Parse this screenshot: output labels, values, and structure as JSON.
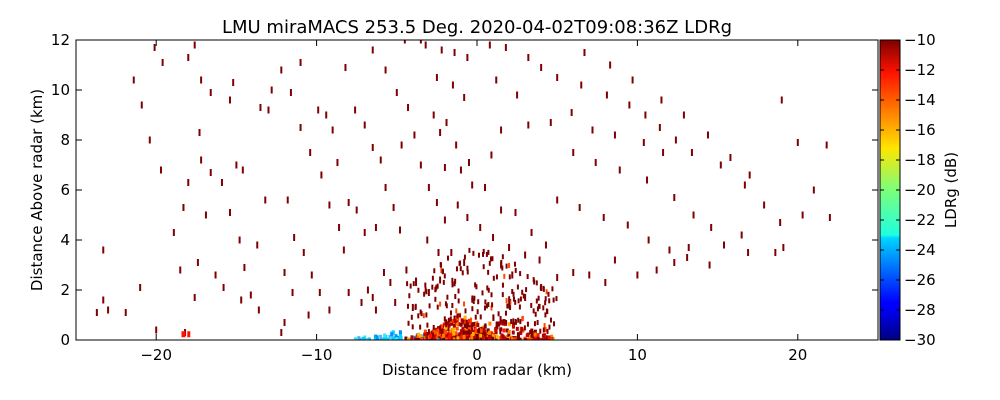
{
  "chart_data": {
    "type": "scatter",
    "title": "LMU miraMACS 253.5 Deg. 2020-04-02T09:08:36Z  LDRg",
    "xlabel": "Distance from radar (km)",
    "ylabel": "Distance Above radar  (km)",
    "xlim": [
      -25,
      25
    ],
    "ylim": [
      0,
      12
    ],
    "xticks": [
      -20,
      -10,
      0,
      10,
      20
    ],
    "yticks": [
      0,
      2,
      4,
      6,
      8,
      10,
      12
    ],
    "colorbar": {
      "label": "LDRg (dB)",
      "range": [
        -30,
        -10
      ],
      "ticks": [
        -10,
        -12,
        -14,
        -16,
        -18,
        -20,
        -22,
        -24,
        -26,
        -28,
        -30
      ],
      "colormap": "jet"
    },
    "grid": false,
    "sparse_points": [
      [
        -23.3,
        3.6
      ],
      [
        -23.3,
        1.6
      ],
      [
        -23.7,
        1.1
      ],
      [
        -21.9,
        1.1
      ],
      [
        -21.0,
        2.1
      ],
      [
        -21.4,
        10.4
      ],
      [
        -20.9,
        9.4
      ],
      [
        -20.4,
        8.0
      ],
      [
        -19.7,
        6.8
      ],
      [
        -20.1,
        11.7
      ],
      [
        -19.6,
        11.1
      ],
      [
        -18.9,
        4.3
      ],
      [
        -18.3,
        5.3
      ],
      [
        -18.0,
        11.3
      ],
      [
        -17.6,
        11.8
      ],
      [
        -17.2,
        10.4
      ],
      [
        -16.6,
        9.9
      ],
      [
        -17.3,
        8.3
      ],
      [
        -18.0,
        6.3
      ],
      [
        -17.2,
        7.2
      ],
      [
        -16.6,
        6.7
      ],
      [
        -16.9,
        5.0
      ],
      [
        -17.4,
        3.1
      ],
      [
        -18.5,
        2.8
      ],
      [
        -16.3,
        2.6
      ],
      [
        -15.9,
        6.3
      ],
      [
        -15.4,
        5.1
      ],
      [
        -15.4,
        9.6
      ],
      [
        -15.0,
        7.0
      ],
      [
        -14.6,
        6.8
      ],
      [
        -14.8,
        4.0
      ],
      [
        -14.5,
        2.9
      ],
      [
        -14.1,
        1.8
      ],
      [
        -13.7,
        3.8
      ],
      [
        -13.2,
        5.6
      ],
      [
        -13.0,
        9.2
      ],
      [
        -12.8,
        10.0
      ],
      [
        -12.2,
        10.8
      ],
      [
        -11.6,
        9.9
      ],
      [
        -11.0,
        8.5
      ],
      [
        -10.4,
        7.5
      ],
      [
        -9.7,
        6.6
      ],
      [
        -9.2,
        5.4
      ],
      [
        -8.6,
        4.5
      ],
      [
        -8.3,
        3.6
      ],
      [
        -11.8,
        5.6
      ],
      [
        -11.4,
        4.1
      ],
      [
        -10.8,
        3.5
      ],
      [
        -10.3,
        2.6
      ],
      [
        -9.8,
        1.9
      ],
      [
        -12.0,
        2.7
      ],
      [
        -11.5,
        1.9
      ],
      [
        -9.9,
        9.2
      ],
      [
        -9.0,
        8.4
      ],
      [
        -8.7,
        7.1
      ],
      [
        -8.0,
        5.5
      ],
      [
        -7.5,
        5.2
      ],
      [
        -7.0,
        4.3
      ],
      [
        -8.2,
        10.9
      ],
      [
        -7.6,
        9.2
      ],
      [
        -7.0,
        8.6
      ],
      [
        -6.5,
        7.7
      ],
      [
        -6.0,
        7.2
      ],
      [
        -5.7,
        6.1
      ],
      [
        -5.2,
        5.3
      ],
      [
        -4.8,
        4.4
      ],
      [
        -6.3,
        4.5
      ],
      [
        -5.8,
        2.7
      ],
      [
        -5.4,
        2.3
      ],
      [
        -4.4,
        2.8
      ],
      [
        -3.8,
        2.3
      ],
      [
        -6.5,
        11.6
      ],
      [
        -5.7,
        10.8
      ],
      [
        -5.0,
        9.9
      ],
      [
        -4.3,
        9.3
      ],
      [
        -3.9,
        8.2
      ],
      [
        -4.7,
        7.8
      ],
      [
        -3.5,
        7.0
      ],
      [
        -3.0,
        6.1
      ],
      [
        -2.5,
        5.5
      ],
      [
        -2.0,
        4.8
      ],
      [
        -6.8,
        2.0
      ],
      [
        -6.5,
        1.7
      ],
      [
        -4.5,
        12.0
      ],
      [
        -3.2,
        11.8
      ],
      [
        -2.2,
        11.6
      ],
      [
        -1.4,
        11.5
      ],
      [
        -0.6,
        11.3
      ],
      [
        -2.5,
        10.5
      ],
      [
        -1.5,
        10.2
      ],
      [
        -0.8,
        9.7
      ],
      [
        -2.3,
        8.3
      ],
      [
        -1.3,
        7.8
      ],
      [
        -0.5,
        7.1
      ],
      [
        -2.7,
        9.0
      ],
      [
        -1.9,
        8.7
      ],
      [
        -1.0,
        6.8
      ],
      [
        -0.3,
        6.2
      ],
      [
        0.5,
        6.1
      ],
      [
        1.5,
        5.2
      ],
      [
        2.4,
        5.1
      ],
      [
        3.4,
        4.3
      ],
      [
        4.3,
        3.8
      ],
      [
        -2.0,
        6.9
      ],
      [
        -1.2,
        5.4
      ],
      [
        -0.6,
        4.9
      ],
      [
        0.2,
        4.5
      ],
      [
        1.0,
        4.1
      ],
      [
        2.0,
        3.7
      ],
      [
        3.0,
        3.4
      ],
      [
        3.9,
        3.2
      ],
      [
        -3.1,
        4.0
      ],
      [
        -2.4,
        3.5
      ],
      [
        0.8,
        11.8
      ],
      [
        1.8,
        11.7
      ],
      [
        3.2,
        11.3
      ],
      [
        4.0,
        10.9
      ],
      [
        5.0,
        10.5
      ],
      [
        6.5,
        10.2
      ],
      [
        8.1,
        9.8
      ],
      [
        9.5,
        9.4
      ],
      [
        10.5,
        9.0
      ],
      [
        11.4,
        8.5
      ],
      [
        12.4,
        8.0
      ],
      [
        13.4,
        7.5
      ],
      [
        15.2,
        7.0
      ],
      [
        16.7,
        6.2
      ],
      [
        17.9,
        5.4
      ],
      [
        18.9,
        4.7
      ],
      [
        6.7,
        11.5
      ],
      [
        8.3,
        11.0
      ],
      [
        9.7,
        10.4
      ],
      [
        11.5,
        9.6
      ],
      [
        12.9,
        9.0
      ],
      [
        14.4,
        8.2
      ],
      [
        15.8,
        7.3
      ],
      [
        17.0,
        6.6
      ],
      [
        19.0,
        9.6
      ],
      [
        20.0,
        7.9
      ],
      [
        21.0,
        6.0
      ],
      [
        22.0,
        4.9
      ],
      [
        21.8,
        7.8
      ],
      [
        20.3,
        5.0
      ],
      [
        6.0,
        7.5
      ],
      [
        7.4,
        7.1
      ],
      [
        8.9,
        6.8
      ],
      [
        10.6,
        6.4
      ],
      [
        12.3,
        5.7
      ],
      [
        13.5,
        5.0
      ],
      [
        14.6,
        4.5
      ],
      [
        15.4,
        3.8
      ],
      [
        16.9,
        3.5
      ],
      [
        18.6,
        3.5
      ],
      [
        5.0,
        5.6
      ],
      [
        6.4,
        5.3
      ],
      [
        7.9,
        4.9
      ],
      [
        9.4,
        4.6
      ],
      [
        10.7,
        4.0
      ],
      [
        12.0,
        3.6
      ],
      [
        13.1,
        3.3
      ],
      [
        14.5,
        3.0
      ],
      [
        4.6,
        8.7
      ],
      [
        5.9,
        9.1
      ],
      [
        7.2,
        8.4
      ],
      [
        8.6,
        8.2
      ],
      [
        10.4,
        7.9
      ],
      [
        11.6,
        7.5
      ],
      [
        1.2,
        10.4
      ],
      [
        2.5,
        9.8
      ],
      [
        3.2,
        8.6
      ],
      [
        1.5,
        8.4
      ],
      [
        0.9,
        7.4
      ],
      [
        -3.5,
        12.0
      ],
      [
        -11.0,
        11.1
      ],
      [
        -13.5,
        9.3
      ],
      [
        -15.2,
        10.3
      ],
      [
        -9.4,
        9.0
      ],
      [
        3.0,
        1.7
      ],
      [
        4.0,
        2.1
      ],
      [
        5.0,
        2.5
      ],
      [
        6.0,
        2.7
      ],
      [
        7.0,
        2.6
      ],
      [
        8.0,
        2.3
      ],
      [
        2.2,
        2.6
      ],
      [
        1.5,
        3.0
      ],
      [
        -0.8,
        3.1
      ],
      [
        -1.6,
        3.5
      ],
      [
        -2.3,
        2.4
      ],
      [
        -3.0,
        1.9
      ],
      [
        -4.0,
        1.3
      ],
      [
        -5.1,
        1.5
      ],
      [
        -6.3,
        1.2
      ],
      [
        -7.2,
        1.5
      ],
      [
        -8.0,
        1.9
      ],
      [
        -9.2,
        1.2
      ],
      [
        -10.5,
        1.0
      ],
      [
        -12.0,
        0.7
      ],
      [
        -13.6,
        1.2
      ],
      [
        -14.7,
        1.6
      ],
      [
        -15.8,
        2.1
      ],
      [
        -17.6,
        1.7
      ],
      [
        -20.0,
        0.4
      ],
      [
        -23.0,
        1.2
      ],
      [
        -18.2,
        0.3
      ],
      [
        -12.2,
        0.3
      ],
      [
        19.1,
        3.7
      ],
      [
        16.5,
        4.2
      ],
      [
        13.2,
        3.7
      ],
      [
        8.6,
        3.2
      ],
      [
        10.0,
        2.6
      ],
      [
        11.2,
        2.8
      ],
      [
        12.3,
        3.1
      ]
    ]
  }
}
